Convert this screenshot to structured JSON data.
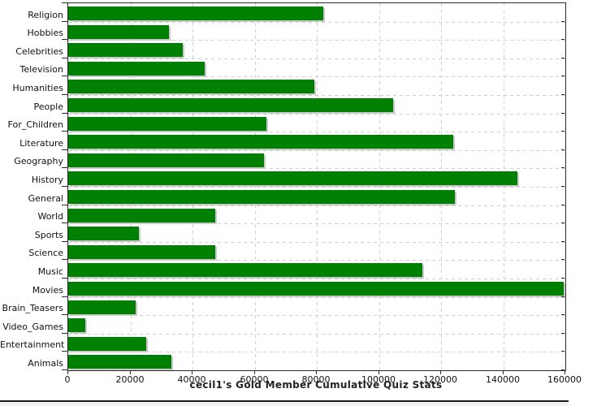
{
  "chart_data": {
    "type": "bar",
    "orientation": "horizontal",
    "title": "cecil1's Gold Member Cumulative Quiz Stats",
    "categories": [
      "Religion",
      "Hobbies",
      "Celebrities",
      "Television",
      "Humanities",
      "People",
      "For_Children",
      "Literature",
      "Geography",
      "History",
      "General",
      "World",
      "Sports",
      "Science",
      "Music",
      "Movies",
      "Brain_Teasers",
      "Video_Games",
      "Entertainment",
      "Animals"
    ],
    "values": [
      82100,
      32300,
      36800,
      44000,
      79200,
      104600,
      63800,
      124000,
      62900,
      144700,
      124500,
      47200,
      22700,
      47400,
      113900,
      159400,
      21800,
      5600,
      25200,
      33300
    ],
    "xlim": [
      0,
      160000
    ],
    "x_ticks": [
      0,
      20000,
      40000,
      60000,
      80000,
      100000,
      120000,
      140000,
      160000
    ],
    "xlabel": "",
    "ylabel": "",
    "grid": true,
    "legend": "none",
    "colors": {
      "bar": "#008000",
      "bar_shadow": "#c9c9c9",
      "grid": "#cfcfcf",
      "plot_border": "#2a2a2a",
      "text": "#111111",
      "title_text": "#222222",
      "background": "#ffffff"
    }
  }
}
